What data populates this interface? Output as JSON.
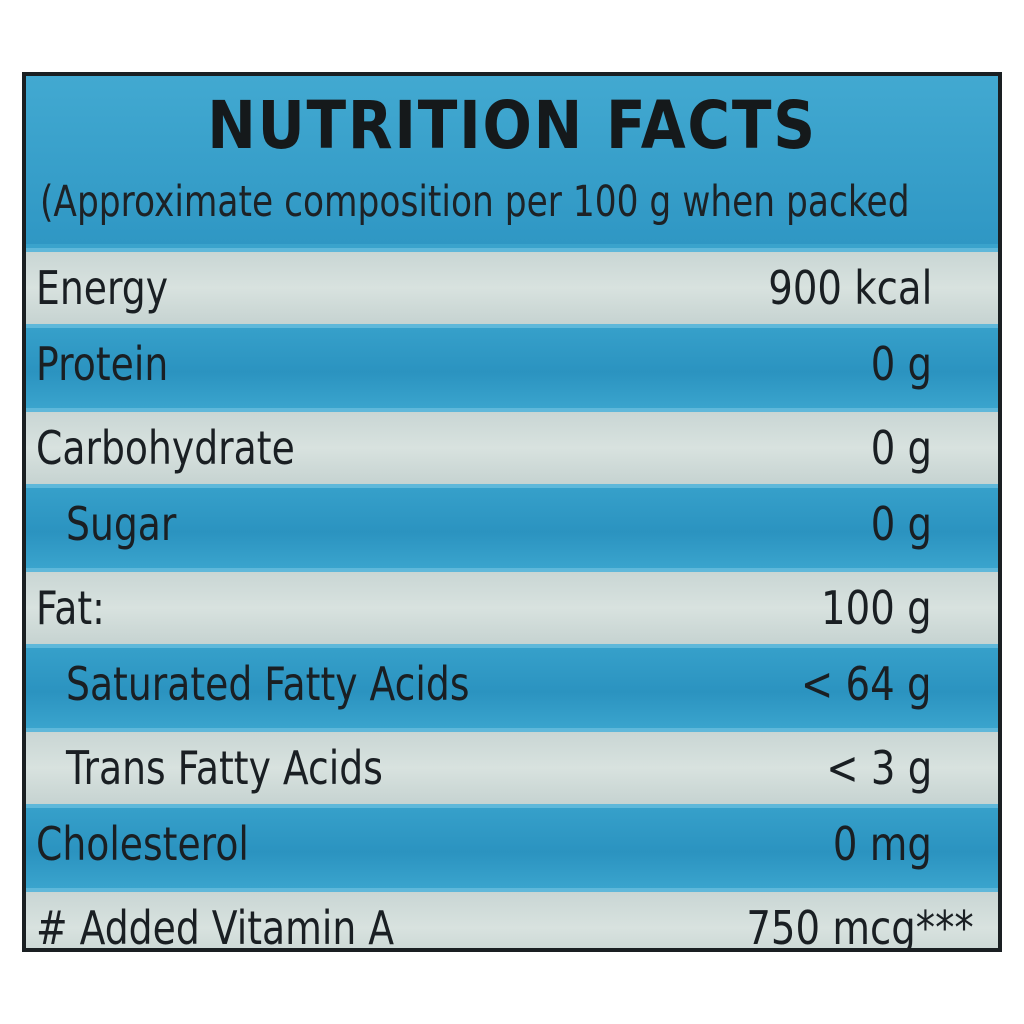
{
  "panel": {
    "title": "NUTRITION FACTS",
    "subtitle": "(Approximate composition per 100 g when packed"
  },
  "rows": [
    {
      "label": "Energy",
      "value": "900 kcal"
    },
    {
      "label": "Protein",
      "value": "0 g"
    },
    {
      "label": "Carbohydrate",
      "value": "0 g"
    },
    {
      "label": "Sugar",
      "value": "0 g"
    },
    {
      "label": "Fat:",
      "value": "100 g"
    },
    {
      "label": "Saturated Fatty Acids",
      "value": "< 64 g"
    },
    {
      "label": "Trans Fatty Acids",
      "value": "< 3 g"
    },
    {
      "label": "Cholesterol",
      "value": "0 mg"
    },
    {
      "label": "# Added Vitamin A",
      "value": "750 mcg***"
    }
  ],
  "colors": {
    "stripe_blue": "#2f97c4",
    "stripe_light": "#d3dedb",
    "border": "#1a1f22",
    "text": "#1c2226"
  }
}
